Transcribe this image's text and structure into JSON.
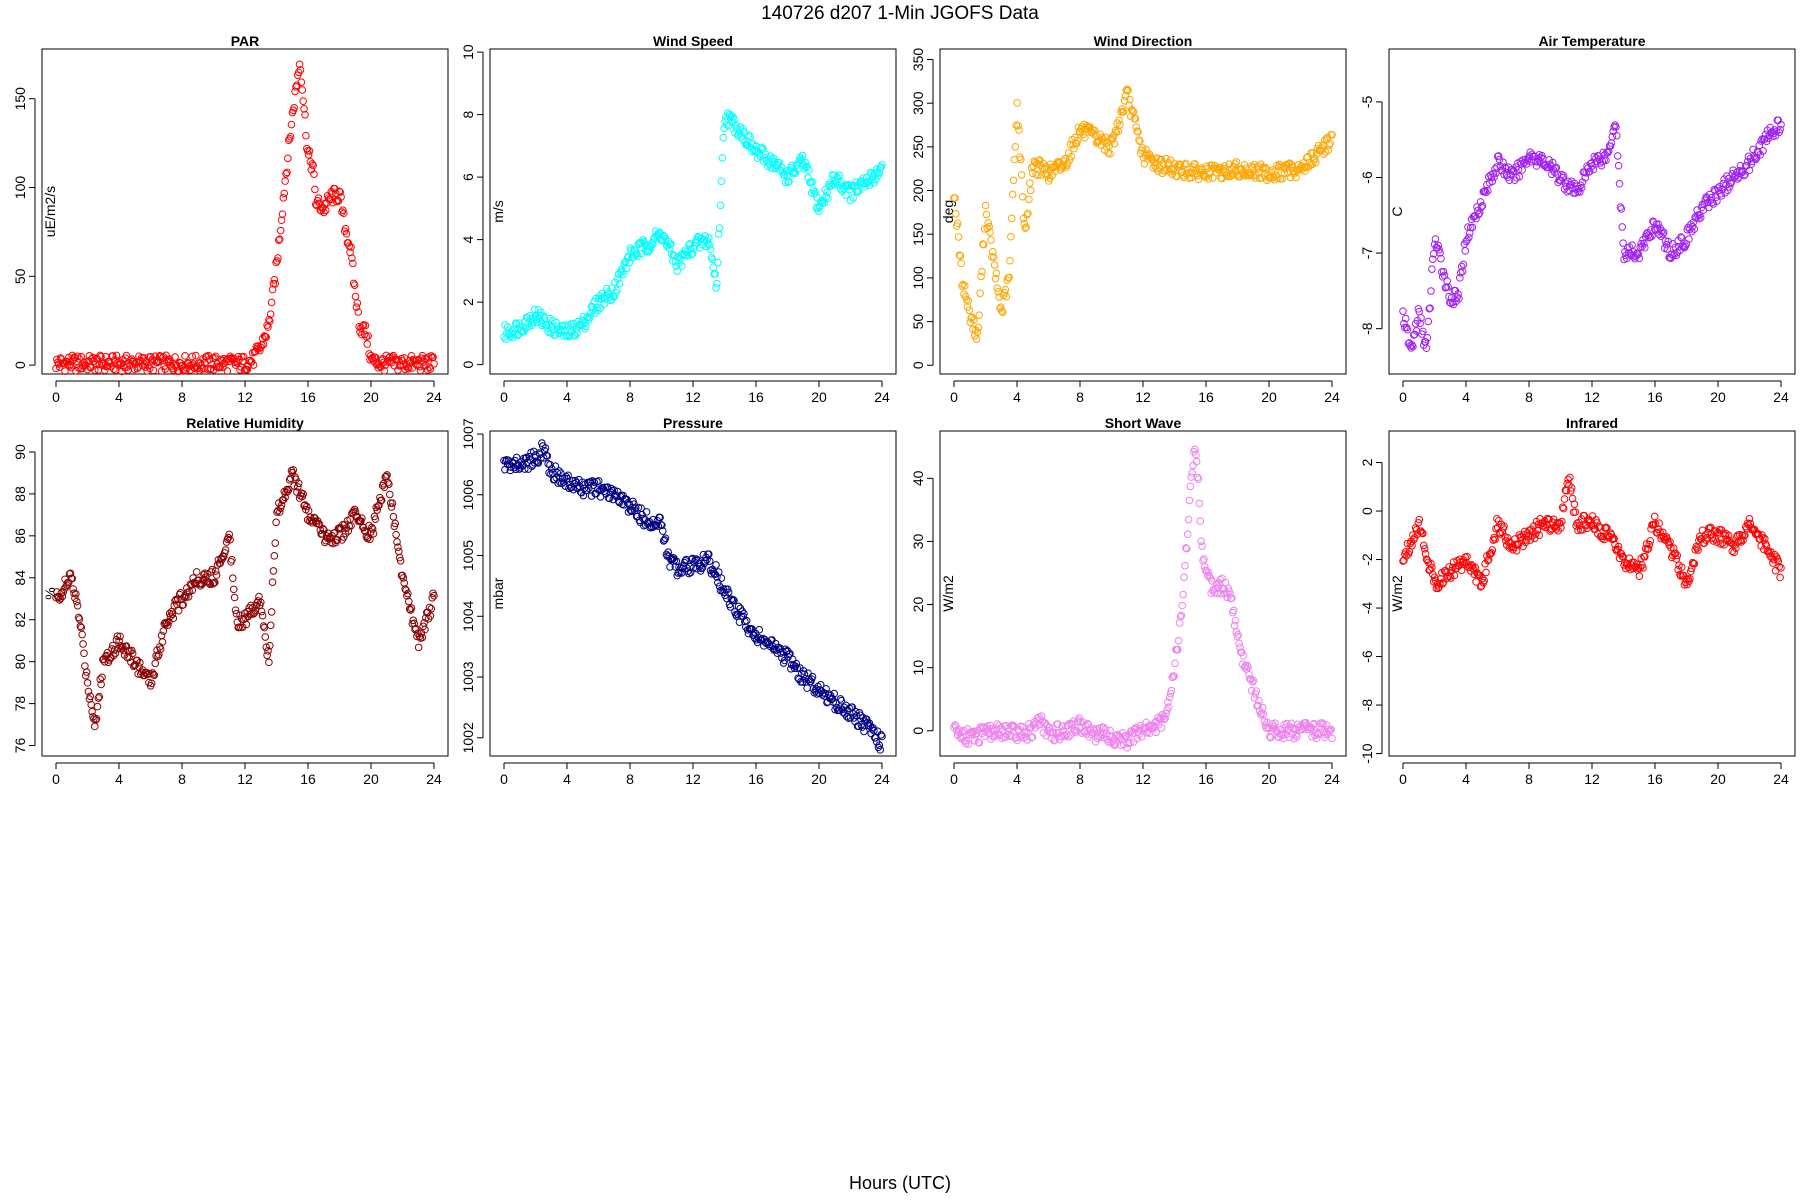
{
  "page": {
    "title": "140726   d207   1-Min  JGOFS Data",
    "xaxis_title": "Hours (UTC)"
  },
  "chart_data": [
    {
      "id": "par",
      "type": "scatter",
      "title": "PAR",
      "ylabel": "uE/m2/s",
      "color": "#ff0000",
      "xlim": [
        0,
        24
      ],
      "ylim": [
        -5,
        178
      ],
      "xticks": [
        0,
        4,
        8,
        12,
        16,
        20,
        24
      ],
      "yticks": [
        0,
        50,
        100,
        150
      ],
      "x": [
        0,
        2,
        4,
        6,
        8,
        10,
        12,
        12.5,
        13,
        13.5,
        14,
        14.5,
        15,
        15.3,
        15.5,
        15.7,
        16,
        16.3,
        16.5,
        17,
        17.5,
        18,
        18.3,
        18.7,
        19,
        19.3,
        19.7,
        20,
        20.5,
        22,
        24
      ],
      "y": [
        1,
        1,
        1,
        1,
        1,
        1,
        1,
        3,
        10,
        22,
        55,
        100,
        140,
        160,
        172,
        150,
        118,
        112,
        92,
        88,
        95,
        96,
        80,
        65,
        40,
        22,
        18,
        3,
        1,
        1,
        1
      ]
    },
    {
      "id": "wind_speed",
      "type": "scatter",
      "title": "Wind Speed",
      "ylabel": "m/s",
      "color": "#00ffff",
      "xlim": [
        0,
        24
      ],
      "ylim": [
        -0.3,
        10.1
      ],
      "xticks": [
        0,
        4,
        8,
        12,
        16,
        20,
        24
      ],
      "yticks": [
        0,
        2,
        4,
        6,
        8,
        10
      ],
      "x": [
        0,
        1,
        2,
        3,
        4,
        5,
        6,
        7,
        8,
        9,
        10,
        11,
        12,
        13,
        13.5,
        14,
        15,
        16,
        17,
        18,
        19,
        20,
        21,
        22,
        23,
        24
      ],
      "y": [
        1.0,
        1.2,
        1.6,
        1.2,
        1.0,
        1.3,
        2.0,
        2.4,
        3.5,
        3.8,
        4.2,
        3.2,
        3.8,
        4.0,
        2.5,
        8.0,
        7.5,
        6.8,
        6.5,
        6.0,
        6.5,
        5.0,
        6.0,
        5.5,
        5.8,
        6.3
      ]
    },
    {
      "id": "wind_direction",
      "type": "scatter",
      "title": "Wind Direction",
      "ylabel": "deg",
      "color": "#ffa500",
      "xlim": [
        0,
        24
      ],
      "ylim": [
        -10,
        362
      ],
      "xticks": [
        0,
        4,
        8,
        12,
        16,
        20,
        24
      ],
      "yticks": [
        0,
        50,
        100,
        150,
        200,
        250,
        300,
        350
      ],
      "x": [
        0,
        0.5,
        1,
        1.5,
        2,
        2.5,
        3,
        3.5,
        4,
        4.5,
        5,
        6,
        7,
        8,
        9,
        10,
        11,
        12,
        13,
        14,
        15,
        16,
        17,
        18,
        19,
        20,
        21,
        22,
        23,
        24
      ],
      "y": [
        200,
        100,
        60,
        30,
        180,
        120,
        60,
        100,
        300,
        150,
        230,
        220,
        230,
        270,
        260,
        250,
        310,
        240,
        230,
        225,
        222,
        220,
        220,
        225,
        222,
        220,
        222,
        225,
        240,
        260
      ]
    },
    {
      "id": "air_temperature",
      "type": "scatter",
      "title": "Air Temperature",
      "ylabel": "C",
      "color": "#a020f0",
      "xlim": [
        0,
        24
      ],
      "ylim": [
        -8.6,
        -4.3
      ],
      "xticks": [
        0,
        4,
        8,
        12,
        16,
        20,
        24
      ],
      "yticks": [
        -8,
        -7,
        -6,
        -5
      ],
      "x": [
        0,
        0.5,
        1,
        1.5,
        2,
        2.5,
        3,
        3.5,
        4,
        5,
        6,
        7,
        8,
        9,
        10,
        11,
        12,
        13,
        13.5,
        14,
        15,
        16,
        17,
        18,
        19,
        20,
        21,
        22,
        23,
        24
      ],
      "y": [
        -7.8,
        -8.3,
        -7.8,
        -8.3,
        -6.8,
        -7.2,
        -7.6,
        -7.6,
        -6.8,
        -6.3,
        -5.8,
        -6.0,
        -5.7,
        -5.8,
        -6.0,
        -6.2,
        -5.8,
        -5.7,
        -5.2,
        -7.0,
        -7.0,
        -6.6,
        -7.0,
        -6.8,
        -6.4,
        -6.2,
        -6.0,
        -5.8,
        -5.5,
        -5.3
      ]
    },
    {
      "id": "relative_humidity",
      "type": "scatter",
      "title": "Relative Humidity",
      "ylabel": "%",
      "color": "#8b0000",
      "xlim": [
        0,
        24
      ],
      "ylim": [
        75.5,
        91
      ],
      "xticks": [
        0,
        4,
        8,
        12,
        16,
        20,
        24
      ],
      "yticks": [
        76,
        78,
        80,
        82,
        84,
        86,
        88,
        90
      ],
      "x": [
        0,
        1,
        1.5,
        2,
        2.5,
        3,
        4,
        5,
        6,
        7,
        8,
        9,
        10,
        11,
        11.5,
        12,
        13,
        13.5,
        14,
        15,
        16,
        17,
        18,
        19,
        20,
        21,
        22,
        23,
        24
      ],
      "y": [
        83,
        84,
        82,
        79,
        77,
        80,
        81,
        80,
        79,
        82,
        83,
        84,
        84,
        86,
        82,
        82,
        83,
        80,
        87,
        89,
        87,
        86,
        86,
        87,
        86,
        89,
        84,
        81,
        83
      ]
    },
    {
      "id": "pressure",
      "type": "scatter",
      "title": "Pressure",
      "ylabel": "mbar",
      "color": "#000080",
      "xlim": [
        0,
        24
      ],
      "ylim": [
        1001.7,
        1007.05
      ],
      "xticks": [
        0,
        4,
        8,
        12,
        16,
        20,
        24
      ],
      "yticks": [
        1002,
        1003,
        1004,
        1005,
        1006,
        1007
      ],
      "x": [
        0,
        1,
        2,
        2.5,
        3,
        4,
        5,
        6,
        7,
        8,
        9,
        10,
        10.5,
        11,
        12,
        13,
        13.5,
        14,
        15,
        16,
        17,
        18,
        19,
        20,
        21,
        22,
        23,
        24
      ],
      "y": [
        1006.5,
        1006.5,
        1006.6,
        1006.75,
        1006.4,
        1006.2,
        1006.1,
        1006.1,
        1006.0,
        1005.8,
        1005.6,
        1005.5,
        1004.9,
        1004.8,
        1004.85,
        1004.9,
        1004.7,
        1004.4,
        1004.0,
        1003.7,
        1003.5,
        1003.3,
        1003.0,
        1002.8,
        1002.6,
        1002.4,
        1002.2,
        1001.9
      ]
    },
    {
      "id": "short_wave",
      "type": "scatter",
      "title": "Short Wave",
      "ylabel": "W/m2",
      "color": "#ee82ee",
      "xlim": [
        0,
        24
      ],
      "ylim": [
        -4,
        47.5
      ],
      "xticks": [
        0,
        4,
        8,
        12,
        16,
        20,
        24
      ],
      "yticks": [
        0,
        10,
        20,
        30,
        40
      ],
      "x": [
        0,
        1,
        2,
        3,
        4,
        5,
        5.3,
        6,
        7,
        8,
        9,
        10,
        11,
        12,
        13,
        13.5,
        14,
        14.5,
        15,
        15.3,
        15.5,
        15.7,
        16,
        16.5,
        17,
        17.5,
        18,
        18.5,
        19,
        19.5,
        20,
        21,
        22,
        24
      ],
      "y": [
        0,
        -1,
        -0.5,
        0,
        -0.5,
        0,
        2,
        -0.5,
        0,
        1,
        -0.5,
        -1,
        -1.5,
        0,
        1,
        3,
        10,
        20,
        38,
        45,
        40,
        30,
        25,
        22,
        23,
        22,
        15,
        10,
        7,
        3,
        0,
        0,
        0,
        0
      ]
    },
    {
      "id": "infrared",
      "type": "scatter",
      "title": "Infrared",
      "ylabel": "W/m2",
      "color": "#ff0000",
      "xlim": [
        0,
        24
      ],
      "ylim": [
        -10.1,
        3.3
      ],
      "xticks": [
        0,
        4,
        8,
        12,
        16,
        20,
        24
      ],
      "yticks": [
        -10,
        -8,
        -6,
        -4,
        -2,
        0,
        2
      ],
      "x": [
        0,
        1,
        2,
        3,
        4,
        5,
        6,
        7,
        8,
        9,
        10,
        10.5,
        11,
        12,
        13,
        14,
        15,
        16,
        17,
        18,
        19,
        20,
        21,
        22,
        23,
        24
      ],
      "y": [
        -2.0,
        -0.5,
        -3.0,
        -2.5,
        -2.0,
        -3.0,
        -0.5,
        -1.5,
        -1.0,
        -0.5,
        -0.5,
        1.5,
        -0.5,
        -0.5,
        -1.0,
        -2.0,
        -2.5,
        -0.5,
        -1.5,
        -3.0,
        -1.0,
        -1.0,
        -1.5,
        -0.5,
        -1.5,
        -2.5
      ]
    }
  ]
}
